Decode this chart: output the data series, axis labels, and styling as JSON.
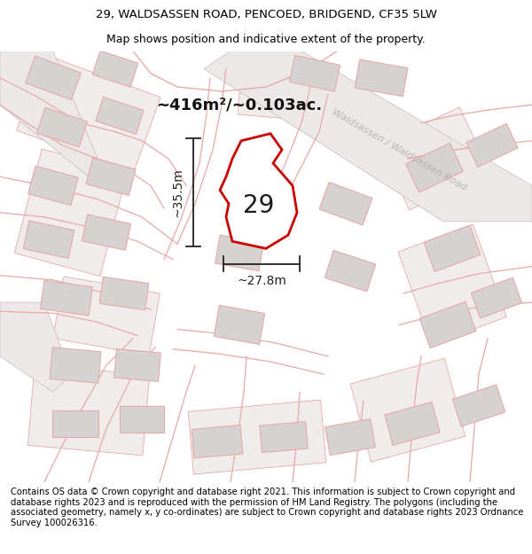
{
  "title_line1": "29, WALDSASSEN ROAD, PENCOED, BRIDGEND, CF35 5LW",
  "title_line2": "Map shows position and indicative extent of the property.",
  "footer_text": "Contains OS data © Crown copyright and database right 2021. This information is subject to Crown copyright and database rights 2023 and is reproduced with the permission of HM Land Registry. The polygons (including the associated geometry, namely x, y co-ordinates) are subject to Crown copyright and database rights 2023 Ordnance Survey 100026316.",
  "area_label": "~416m²/~0.103ac.",
  "number_label": "29",
  "width_label": "~27.8m",
  "height_label": "~35.5m",
  "road_label": "Waldsassen / Waldsassen Road",
  "bg_color": "#ffffff",
  "map_bg": "#f7f4f4",
  "plot_fill": "#ffffff",
  "plot_stroke": "#cc0000",
  "building_fill": "#d6d2d2",
  "building_stroke": "#e8a8a8",
  "road_color": "#e8a8a8",
  "dim_color": "#222222",
  "road_label_color": "#b0aaaa",
  "title_fontsize": 9.5,
  "footer_fontsize": 7.2,
  "area_fontsize": 13
}
